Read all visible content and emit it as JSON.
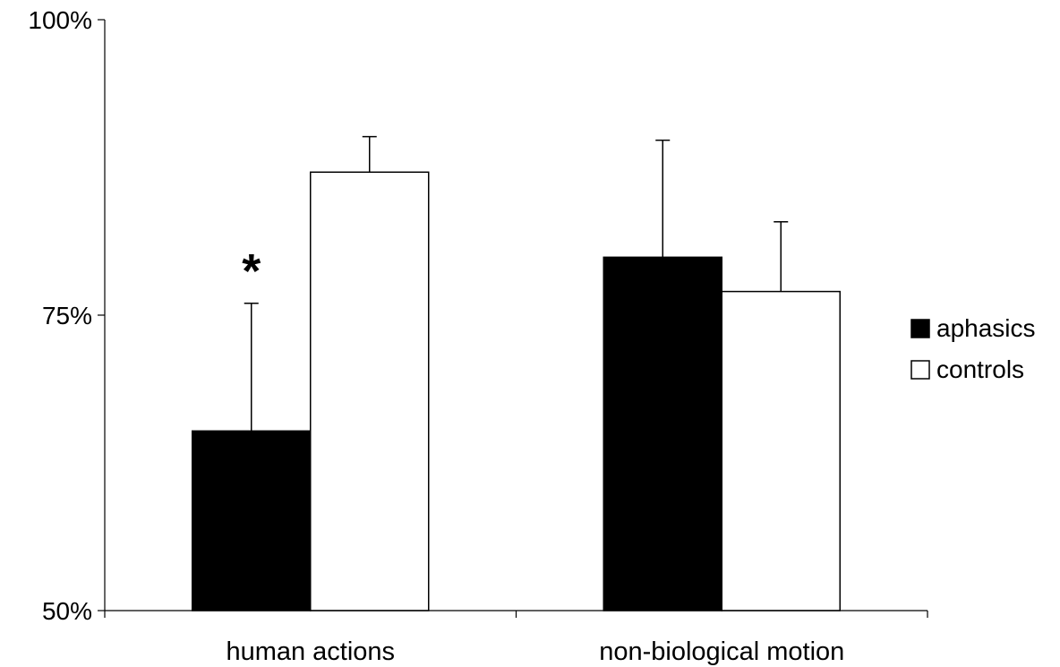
{
  "chart_data": {
    "type": "bar",
    "title": "",
    "xlabel": "",
    "ylabel": "",
    "ylim": [
      50,
      100
    ],
    "y_ticks": [
      50,
      75,
      100
    ],
    "y_tick_labels": [
      "50%",
      "75%",
      "100%"
    ],
    "categories": [
      "human actions",
      "non-biological motion"
    ],
    "series": [
      {
        "name": "aphasics",
        "color": "#000000",
        "values": [
          65.2,
          79.9
        ],
        "error": [
          10.8,
          9.9
        ]
      },
      {
        "name": "controls",
        "color": "#ffffff",
        "values": [
          87.1,
          77.0
        ],
        "error": [
          3.0,
          5.9
        ]
      }
    ],
    "error_bars": "upper",
    "annotations": [
      {
        "text": "*",
        "category": 0,
        "series": 0
      }
    ],
    "legend": {
      "position": "right"
    },
    "grid": false
  }
}
